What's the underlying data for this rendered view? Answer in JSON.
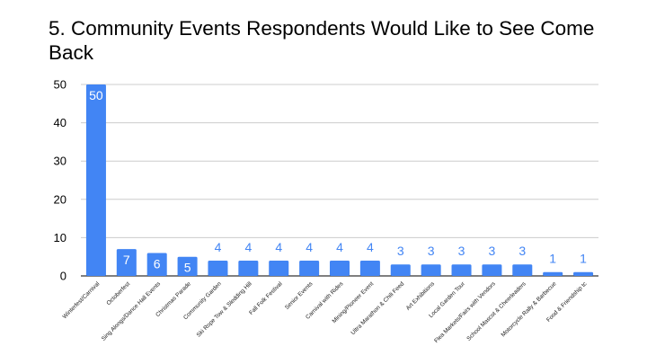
{
  "chart_data": {
    "type": "bar",
    "title": "5. Community Events Respondents Would Like to See Come Back",
    "xlabel": "",
    "ylabel": "",
    "ylim": [
      0,
      50
    ],
    "yticks": [
      0,
      10,
      20,
      30,
      40,
      50
    ],
    "grid": true,
    "bar_color": "#4285f4",
    "label_inside_color": "#ffffff",
    "label_outside_color": "#4285f4",
    "categories": [
      "Winterfest/Carnival",
      "Octoberfest",
      "Sing Alongs/Dance Hall Events",
      "Christmas Parade",
      "Community Garden",
      "Ski Rope Tow & Sledding Hill",
      "Fall Folk Festival",
      "Senior Events",
      "Carnival with Rides",
      "Mining/Pioneer Event",
      "Ultra Marathon & Chili Feed",
      "Art Exhibitions",
      "Local Garden Tour",
      "Flea Markets/Fairs with Vendors",
      "School Mascot & Cheerleaders",
      "Motorcycle Rally & Barbecue",
      "Food & Friendship tc"
    ],
    "values": [
      50,
      7,
      6,
      5,
      4,
      4,
      4,
      4,
      4,
      4,
      3,
      3,
      3,
      3,
      3,
      1,
      1
    ]
  }
}
